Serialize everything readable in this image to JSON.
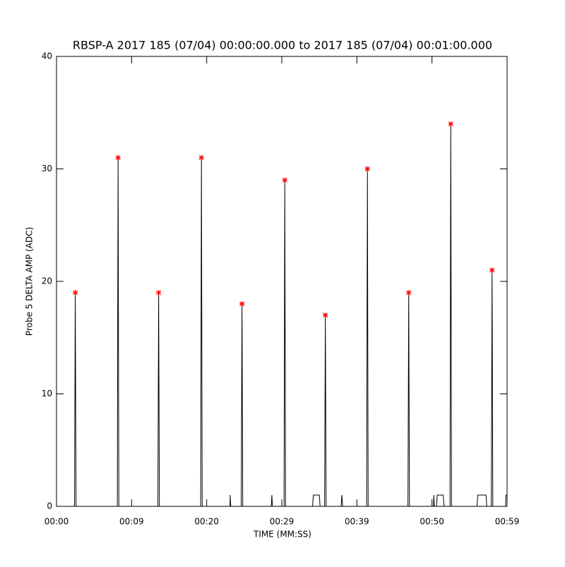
{
  "chart_data": {
    "type": "line",
    "title": "RBSP-A 2017 185 (07/04) 00:00:00.000 to 2017 185 (07/04) 00:01:00.000",
    "x_label": "TIME (MM:SS)",
    "y_label": "Probe 5 DELTA AMP (ADC)",
    "xlim": [
      0,
      60
    ],
    "xticks": [
      {
        "value": 0,
        "label": "00:00"
      },
      {
        "value": 10,
        "label": "00:09"
      },
      {
        "value": 20,
        "label": "00:20"
      },
      {
        "value": 30,
        "label": "00:29"
      },
      {
        "value": 40,
        "label": "00:39"
      },
      {
        "value": 50,
        "label": "00:50"
      },
      {
        "value": 60,
        "label": "00:59"
      }
    ],
    "ylim": [
      0,
      40
    ],
    "yticks": [
      0,
      10,
      20,
      30,
      40
    ],
    "grid": false,
    "series": [
      {
        "color": "#000000",
        "x": [
          0,
          2.4,
          2.5,
          2.6,
          8.1,
          8.2,
          8.3,
          13.5,
          13.6,
          13.7,
          19.2,
          19.3,
          19.4,
          23.1,
          23.13,
          23.2,
          24.6,
          24.7,
          24.8,
          28.6,
          28.68,
          28.75,
          30.3,
          30.4,
          30.5,
          34.1,
          34.2,
          35.0,
          35.1,
          35.7,
          35.8,
          35.9,
          37.9,
          38.0,
          38.1,
          41.3,
          41.4,
          41.5,
          46.8,
          46.9,
          47.0,
          50.2,
          50.25,
          50.3,
          50.6,
          50.7,
          51.5,
          51.6,
          52.4,
          52.5,
          52.6,
          56.0,
          56.1,
          57.2,
          57.3,
          57.9,
          58.0,
          58.1,
          59.8,
          59.85,
          60
        ],
        "values": [
          0,
          0,
          19,
          0,
          0,
          31,
          0,
          0,
          19,
          0,
          0,
          31,
          0,
          0,
          1,
          0,
          0,
          18,
          0,
          0,
          1,
          0,
          0,
          29,
          0,
          0,
          1,
          1,
          0,
          0,
          17,
          0,
          0,
          1,
          0,
          0,
          30,
          0,
          0,
          19,
          0,
          0,
          1,
          0,
          0,
          1,
          1,
          0,
          0,
          34,
          0,
          0,
          1,
          1,
          0,
          0,
          21,
          0,
          0,
          1,
          1
        ]
      },
      {
        "color": "#ff0000",
        "marker": "asterisk",
        "x": [
          2.5,
          8.2,
          13.6,
          19.3,
          24.7,
          30.4,
          35.8,
          41.4,
          46.9,
          52.5,
          58.0
        ],
        "values": [
          19,
          31,
          19,
          31,
          18,
          29,
          17,
          30,
          19,
          34,
          21
        ]
      }
    ]
  }
}
